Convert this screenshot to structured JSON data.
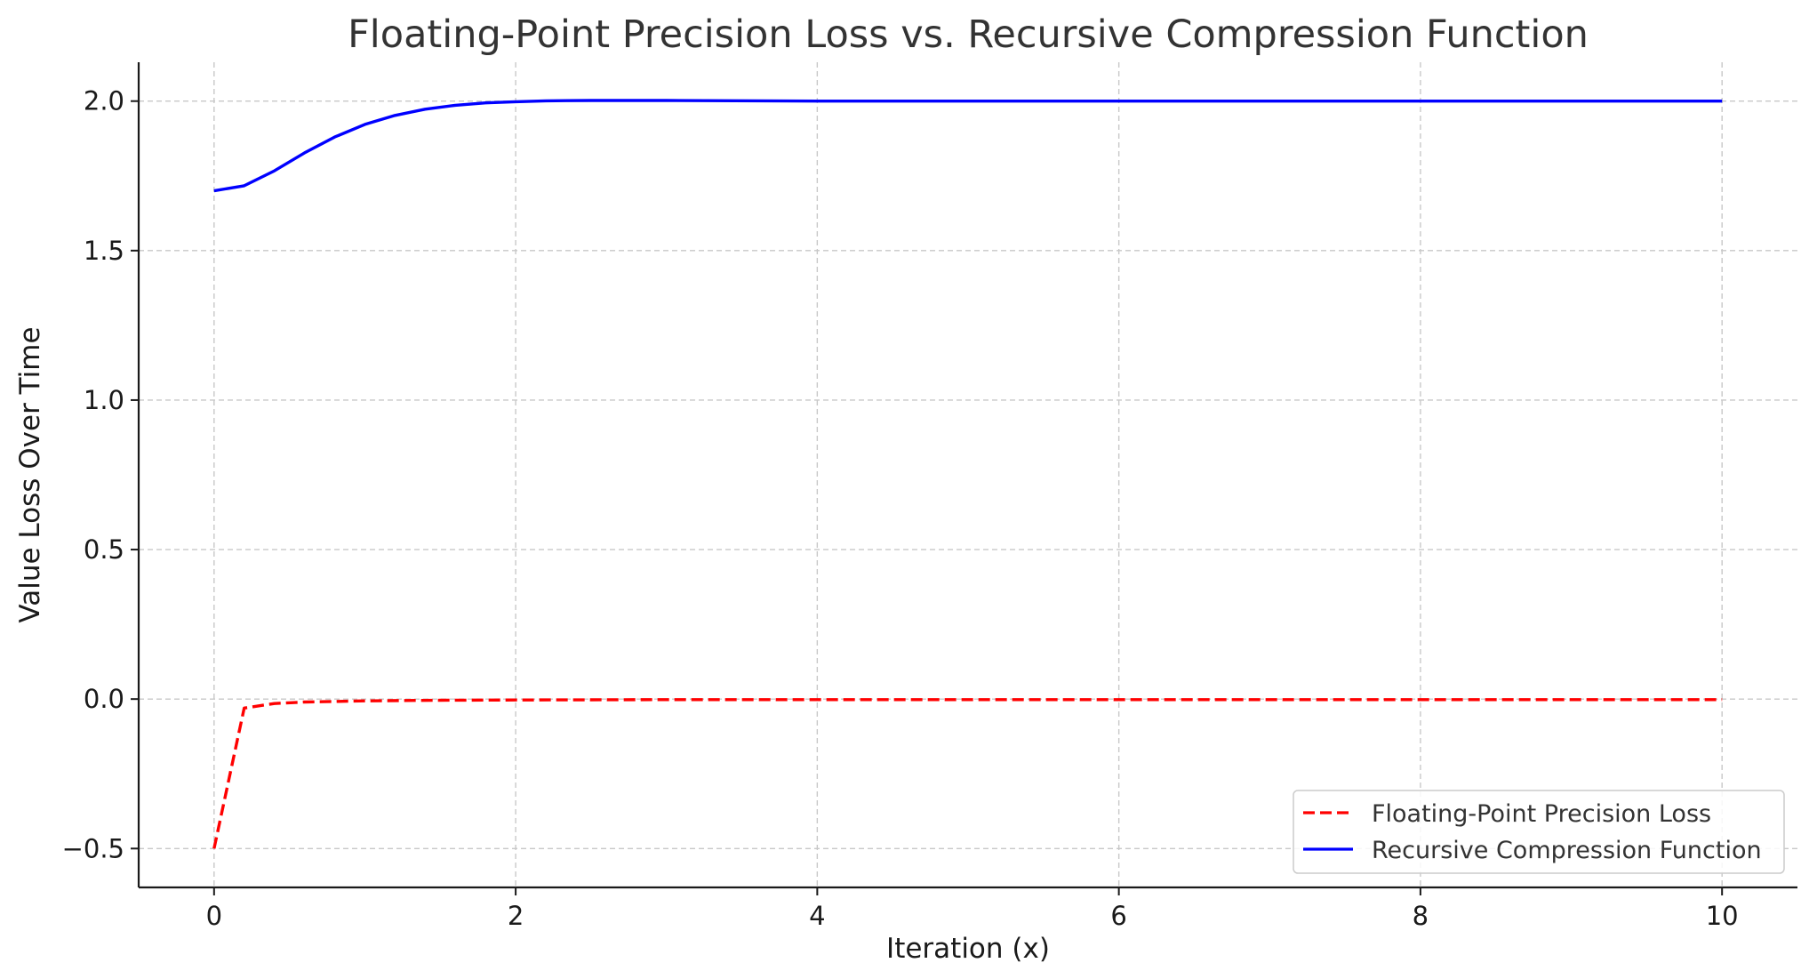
{
  "chart_data": {
    "type": "line",
    "title": "Floating-Point Precision Loss vs. Recursive Compression Function",
    "xlabel": "Iteration (x)",
    "ylabel": "Value Loss Over Time",
    "xlim": [
      -0.5,
      10.5
    ],
    "ylim": [
      -0.63,
      2.13
    ],
    "x_ticks": [
      0,
      2,
      4,
      6,
      8,
      10
    ],
    "x_tick_labels": [
      "0",
      "2",
      "4",
      "6",
      "8",
      "10"
    ],
    "y_ticks": [
      -0.5,
      0.0,
      0.5,
      1.0,
      1.5,
      2.0
    ],
    "y_tick_labels": [
      "−0.5",
      "0.0",
      "0.5",
      "1.0",
      "1.5",
      "2.0"
    ],
    "grid": true,
    "legend_position": "bottom-right",
    "series": [
      {
        "name": "Floating-Point Precision Loss",
        "color": "#ff0000",
        "line_style": "dashed",
        "x": [
          0,
          0.2,
          0.4,
          0.6,
          0.8,
          1.0,
          1.5,
          2,
          3,
          4,
          5,
          6,
          7,
          8,
          9,
          10
        ],
        "y": [
          -0.5,
          -0.03,
          -0.015,
          -0.01,
          -0.008,
          -0.006,
          -0.004,
          -0.003,
          -0.002,
          -0.002,
          -0.002,
          -0.002,
          -0.002,
          -0.002,
          -0.002,
          -0.002
        ]
      },
      {
        "name": "Recursive Compression Function",
        "color": "#0000ff",
        "line_style": "solid",
        "x": [
          0,
          0.2,
          0.4,
          0.6,
          0.8,
          1.0,
          1.2,
          1.4,
          1.6,
          1.8,
          2.0,
          2.2,
          2.5,
          3.0,
          4,
          5,
          6,
          7,
          8,
          9,
          10
        ],
        "y": [
          1.7,
          1.717,
          1.767,
          1.827,
          1.88,
          1.922,
          1.952,
          1.973,
          1.986,
          1.994,
          1.998,
          2.001,
          2.002,
          2.002,
          2.0,
          2.0,
          2.0,
          2.0,
          2.0,
          2.0,
          2.0
        ]
      }
    ]
  }
}
